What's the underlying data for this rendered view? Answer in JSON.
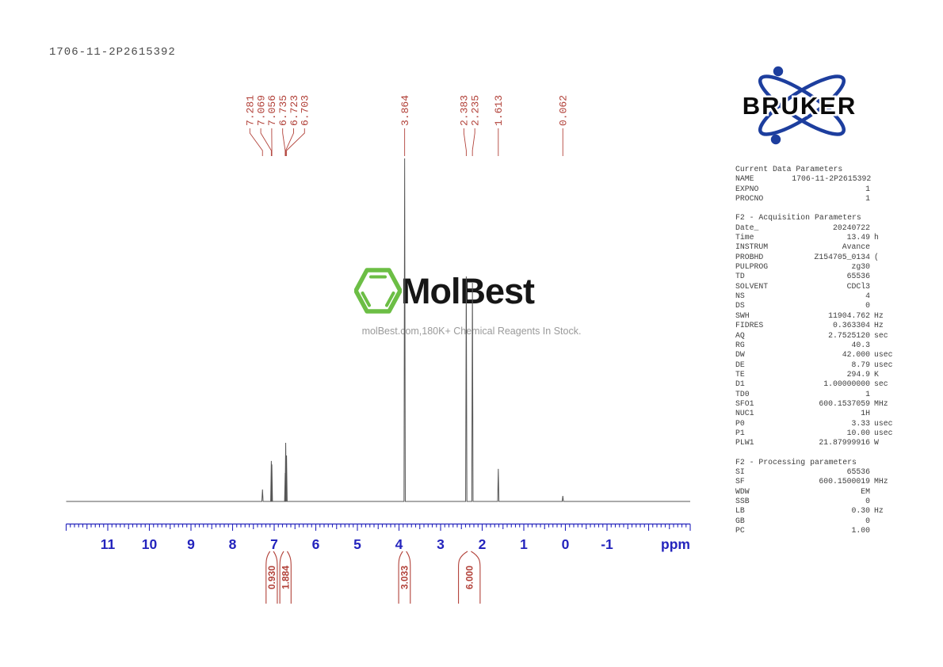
{
  "page": {
    "title": "1706-11-2P2615392"
  },
  "bruker": {
    "label": "BRUKER",
    "blue": "#1d3e9e",
    "text_color": "#0a0a0a"
  },
  "watermark": {
    "brand": "MolBest",
    "tagline": "molBest.com,180K+ Chemical Reagents In Stock.",
    "logo": "benzene-hexagon-icon",
    "green": "#6cbe45"
  },
  "colors": {
    "marker_red": "#b2423a",
    "axis_blue": "#2424bd",
    "trace_gray": "#555555"
  },
  "chart_data": {
    "type": "line",
    "title": "1H NMR spectrum",
    "xlabel": "ppm",
    "x_axis": {
      "min": -3.0,
      "max": 12.0,
      "direction": "reversed",
      "minor_step": 0.1,
      "half_step": 0.5,
      "major_step": 1.0,
      "labeled_ticks": [
        11,
        10,
        9,
        8,
        7,
        6,
        5,
        4,
        3,
        2,
        1,
        0,
        -1
      ],
      "unit_label": "ppm",
      "grid": false
    },
    "peaks": [
      {
        "ppm": 7.281,
        "rel_intensity": 0.035
      },
      {
        "ppm": 7.069,
        "rel_intensity": 0.118
      },
      {
        "ppm": 7.056,
        "rel_intensity": 0.108
      },
      {
        "ppm": 6.735,
        "rel_intensity": 0.083
      },
      {
        "ppm": 6.723,
        "rel_intensity": 0.171
      },
      {
        "ppm": 6.703,
        "rel_intensity": 0.134
      },
      {
        "ppm": 3.864,
        "rel_intensity": 1.0
      },
      {
        "ppm": 2.383,
        "rel_intensity": 0.656
      },
      {
        "ppm": 2.235,
        "rel_intensity": 0.637
      },
      {
        "ppm": 1.613,
        "rel_intensity": 0.095
      },
      {
        "ppm": 0.062,
        "rel_intensity": 0.016
      }
    ],
    "integrals": [
      {
        "value": "0.930",
        "ppm_center": 7.06,
        "ppm_halfwidth": 0.135
      },
      {
        "value": "1.884",
        "ppm_center": 6.729,
        "ppm_halfwidth": 0.135
      },
      {
        "value": "3.033",
        "ppm_center": 3.868,
        "ppm_halfwidth": 0.14
      },
      {
        "value": "6.000",
        "ppm_center": 2.31,
        "ppm_halfwidth": 0.26
      }
    ]
  },
  "parameters_panel": {
    "sections": [
      {
        "header": "Current Data Parameters",
        "rows": [
          {
            "name": "NAME",
            "value": "1706-11-2P2615392",
            "unit": ""
          },
          {
            "name": "EXPNO",
            "value": "1",
            "unit": ""
          },
          {
            "name": "PROCNO",
            "value": "1",
            "unit": ""
          }
        ]
      },
      {
        "header": "F2 - Acquisition Parameters",
        "rows": [
          {
            "name": "Date_",
            "value": "20240722",
            "unit": ""
          },
          {
            "name": "Time",
            "value": "13.49",
            "unit": "h"
          },
          {
            "name": "INSTRUM",
            "value": "Avance",
            "unit": ""
          },
          {
            "name": "PROBHD",
            "value": "Z154705_0134",
            "unit": "("
          },
          {
            "name": "PULPROG",
            "value": "zg30",
            "unit": ""
          },
          {
            "name": "TD",
            "value": "65536",
            "unit": ""
          },
          {
            "name": "SOLVENT",
            "value": "CDCl3",
            "unit": ""
          },
          {
            "name": "NS",
            "value": "4",
            "unit": ""
          },
          {
            "name": "DS",
            "value": "0",
            "unit": ""
          },
          {
            "name": "SWH",
            "value": "11904.762",
            "unit": "Hz"
          },
          {
            "name": "FIDRES",
            "value": "0.363304",
            "unit": "Hz"
          },
          {
            "name": "AQ",
            "value": "2.7525120",
            "unit": "sec"
          },
          {
            "name": "RG",
            "value": "40.3",
            "unit": ""
          },
          {
            "name": "DW",
            "value": "42.000",
            "unit": "usec"
          },
          {
            "name": "DE",
            "value": "8.79",
            "unit": "usec"
          },
          {
            "name": "TE",
            "value": "294.9",
            "unit": "K"
          },
          {
            "name": "D1",
            "value": "1.00000000",
            "unit": "sec"
          },
          {
            "name": "TD0",
            "value": "1",
            "unit": ""
          },
          {
            "name": "SFO1",
            "value": "600.1537059",
            "unit": "MHz"
          },
          {
            "name": "NUC1",
            "value": "1H",
            "unit": ""
          },
          {
            "name": "P0",
            "value": "3.33",
            "unit": "usec"
          },
          {
            "name": "P1",
            "value": "10.00",
            "unit": "usec"
          },
          {
            "name": "PLW1",
            "value": "21.87999916",
            "unit": "W"
          }
        ]
      },
      {
        "header": "F2 - Processing parameters",
        "rows": [
          {
            "name": "SI",
            "value": "65536",
            "unit": ""
          },
          {
            "name": "SF",
            "value": "600.1500019",
            "unit": "MHz"
          },
          {
            "name": "WDW",
            "value": "EM",
            "unit": ""
          },
          {
            "name": "SSB",
            "value": "0",
            "unit": ""
          },
          {
            "name": "LB",
            "value": "0.30",
            "unit": "Hz"
          },
          {
            "name": "GB",
            "value": "0",
            "unit": ""
          },
          {
            "name": "PC",
            "value": "1.00",
            "unit": ""
          }
        ]
      }
    ]
  }
}
